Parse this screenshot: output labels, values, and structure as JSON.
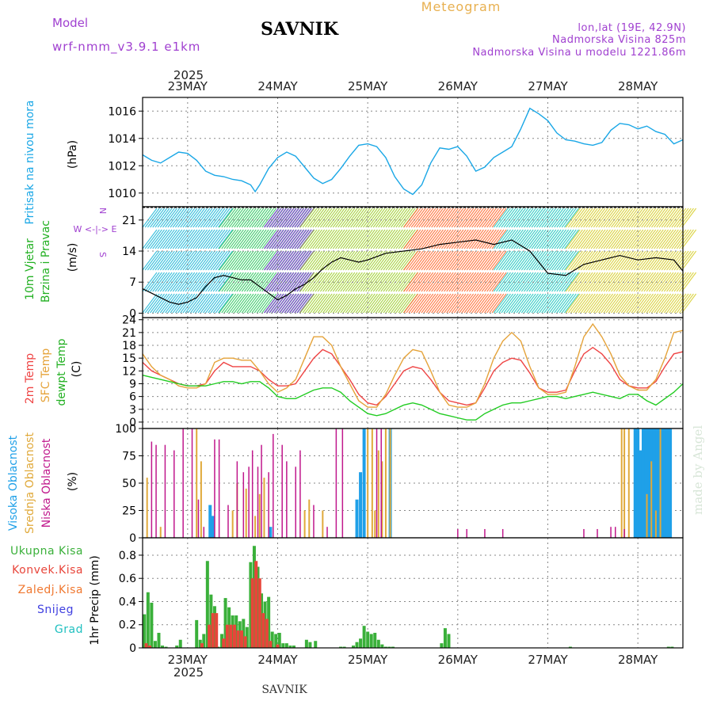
{
  "header": {
    "model_label": "Model",
    "model_name": "wrf-nmm_v3.9.1  e1km",
    "station": "SAVNIK",
    "product": "Meteogram",
    "coords": "lon,lat (19E, 42.9N)",
    "elevation": "Nadmorska Visina 825m",
    "model_elevation": "Nadmorska Visina u modelu 1221.86m",
    "watermark": "made by Angel",
    "footer_station": "SAVNIK"
  },
  "time_axis": {
    "year": "2025",
    "days": [
      "23MAY",
      "24MAY",
      "25MAY",
      "26MAY",
      "27MAY",
      "28MAY"
    ],
    "day_positions_days": [
      0,
      1,
      2,
      3,
      4,
      5
    ],
    "range_days": [
      -0.5,
      5.5
    ]
  },
  "colors": {
    "pressure": "#1aa7e6",
    "wind_black": "#000000",
    "t2m": "#ef4444",
    "tsfc": "#e5a33a",
    "dewpt": "#22cc22",
    "high_cloud": "#1fa0e8",
    "mid_cloud": "#e0a93a",
    "low_cloud": "#c0188c",
    "precip_total": "#3ab03a",
    "precip_conv": "#e8453a",
    "precip_strat": "#f07830",
    "snow": "#4040e0",
    "hail": "#20c0c0",
    "title_purple": "#a040d0",
    "meteogram_gold": "#e8b050"
  },
  "panels": {
    "pressure": {
      "label": "Pritisak na nivou mora",
      "unit": "(hPa)",
      "ticks": [
        1010,
        1012,
        1014,
        1016
      ]
    },
    "wind": {
      "label1": "10m Vjetar",
      "label2": "Brzina i Pravac",
      "unit": "(m/s)",
      "ticks": [
        0,
        7,
        14,
        21
      ],
      "compass": "W <-|-> E",
      "compass_n": "N",
      "compass_s": "S"
    },
    "temp": {
      "label1": "2m Temp",
      "label2": "SFC Temp",
      "label3": "dewpt Temp",
      "unit": "(C)",
      "ticks": [
        0,
        3,
        6,
        9,
        12,
        15,
        18,
        21,
        24
      ]
    },
    "cloud": {
      "label1": "Visoka Oblacnost",
      "label2": "Srednja Oblacnost",
      "label3": "Niska Oblacnost",
      "unit": "(%)",
      "ticks": [
        0,
        25,
        50,
        75,
        100
      ]
    },
    "precip": {
      "unit": "1hr Precip (mm)",
      "ticks": [
        0,
        0.2,
        0.4,
        0.6,
        0.8
      ],
      "legend": [
        "Ukupna Kisa",
        "Konvek.Kisa",
        "Zaledj.Kisa",
        "Snijeg",
        "Grad"
      ]
    }
  },
  "chart_data": [
    {
      "type": "line",
      "title": "Pritisak na nivou mora",
      "ylabel": "(hPa)",
      "ylim": [
        1009,
        1017
      ],
      "x": [
        -0.5,
        -0.4,
        -0.3,
        -0.2,
        -0.1,
        0.0,
        0.1,
        0.2,
        0.3,
        0.4,
        0.5,
        0.6,
        0.7,
        0.75,
        0.8,
        0.9,
        1.0,
        1.1,
        1.2,
        1.3,
        1.4,
        1.5,
        1.6,
        1.7,
        1.8,
        1.9,
        2.0,
        2.1,
        2.2,
        2.3,
        2.4,
        2.5,
        2.6,
        2.7,
        2.8,
        2.9,
        3.0,
        3.1,
        3.2,
        3.3,
        3.4,
        3.5,
        3.6,
        3.7,
        3.8,
        3.9,
        4.0,
        4.1,
        4.2,
        4.3,
        4.4,
        4.5,
        4.6,
        4.7,
        4.8,
        4.9,
        5.0,
        5.1,
        5.2,
        5.3,
        5.4,
        5.5
      ],
      "y": [
        1012.8,
        1012.4,
        1012.2,
        1012.6,
        1013.0,
        1012.9,
        1012.4,
        1011.6,
        1011.3,
        1011.2,
        1011.0,
        1010.9,
        1010.6,
        1010.1,
        1010.6,
        1011.8,
        1012.6,
        1013.0,
        1012.7,
        1011.9,
        1011.1,
        1010.7,
        1011.0,
        1011.8,
        1012.7,
        1013.5,
        1013.6,
        1013.4,
        1012.6,
        1011.2,
        1010.3,
        1009.9,
        1010.6,
        1012.2,
        1013.3,
        1013.2,
        1013.4,
        1012.7,
        1011.6,
        1011.9,
        1012.6,
        1013.0,
        1013.4,
        1014.7,
        1016.2,
        1015.8,
        1015.3,
        1014.4,
        1013.9,
        1013.8,
        1013.6,
        1013.5,
        1013.7,
        1014.6,
        1015.1,
        1015.0,
        1014.7,
        1014.9,
        1014.5,
        1014.3,
        1013.6,
        1013.9
      ]
    },
    {
      "type": "line",
      "title": "10m Vjetar Brzina i Pravac",
      "ylabel": "(m/s)",
      "ylim": [
        -1,
        24
      ],
      "series": [
        {
          "name": "10m wind speed",
          "x": [
            -0.5,
            -0.4,
            -0.3,
            -0.2,
            -0.1,
            0.0,
            0.1,
            0.2,
            0.3,
            0.4,
            0.5,
            0.6,
            0.7,
            0.8,
            0.9,
            1.0,
            1.1,
            1.2,
            1.3,
            1.4,
            1.5,
            1.6,
            1.7,
            1.8,
            1.9,
            2.0,
            2.2,
            2.4,
            2.6,
            2.8,
            3.0,
            3.2,
            3.4,
            3.6,
            3.8,
            4.0,
            4.2,
            4.4,
            4.6,
            4.8,
            5.0,
            5.2,
            5.4,
            5.5
          ],
          "y": [
            5.5,
            4.5,
            3.5,
            2.5,
            2.0,
            2.5,
            3.5,
            6.0,
            8.0,
            8.5,
            8.0,
            7.5,
            7.5,
            6.0,
            4.5,
            3.0,
            4.0,
            5.5,
            6.5,
            8.0,
            10.0,
            11.5,
            12.5,
            12.0,
            11.5,
            12.0,
            13.5,
            14.0,
            14.5,
            15.5,
            16.0,
            16.5,
            15.5,
            16.5,
            14.0,
            9.0,
            8.5,
            11.0,
            12.0,
            13.0,
            12.0,
            12.5,
            12.0,
            9.5
          ]
        }
      ]
    },
    {
      "type": "line",
      "title": "2m Temp / SFC Temp / dewpt Temp",
      "ylabel": "(C)",
      "ylim": [
        -1.5,
        24.5
      ],
      "x": [
        -0.5,
        -0.4,
        -0.3,
        -0.2,
        -0.1,
        0.0,
        0.1,
        0.2,
        0.3,
        0.4,
        0.5,
        0.6,
        0.7,
        0.8,
        0.9,
        1.0,
        1.1,
        1.2,
        1.3,
        1.4,
        1.5,
        1.6,
        1.7,
        1.8,
        1.9,
        2.0,
        2.1,
        2.2,
        2.3,
        2.4,
        2.5,
        2.6,
        2.7,
        2.8,
        2.9,
        3.0,
        3.1,
        3.2,
        3.3,
        3.4,
        3.5,
        3.6,
        3.7,
        3.8,
        3.9,
        4.0,
        4.1,
        4.2,
        4.3,
        4.4,
        4.5,
        4.6,
        4.7,
        4.8,
        4.9,
        5.0,
        5.1,
        5.2,
        5.3,
        5.4,
        5.5
      ],
      "series": [
        {
          "name": "2m Temp",
          "y": [
            14,
            12,
            11,
            10,
            9,
            8.5,
            8.5,
            9,
            12,
            14,
            13,
            13,
            13,
            12,
            10,
            8.5,
            8.5,
            9,
            12,
            15,
            17,
            16,
            13,
            10,
            6.5,
            4.5,
            4,
            6,
            9,
            12,
            13,
            12.5,
            10,
            7,
            5,
            4.5,
            4,
            4.5,
            8,
            12,
            14,
            15,
            14.5,
            11.5,
            8,
            7,
            7,
            7.5,
            12,
            16,
            17.5,
            16,
            13.5,
            10,
            8.5,
            8,
            8,
            9.5,
            13,
            16,
            16.5
          ]
        },
        {
          "name": "SFC Temp",
          "y": [
            16,
            13,
            11,
            10,
            8.5,
            8,
            8,
            9,
            14,
            15,
            15,
            14.5,
            14.5,
            12,
            9,
            7,
            8,
            10,
            15,
            20,
            20,
            18,
            13,
            9,
            5,
            3.5,
            3.5,
            6.5,
            11,
            15,
            17,
            16.5,
            12,
            7,
            4,
            3.5,
            3.5,
            4.5,
            9,
            15,
            19,
            21,
            19,
            13,
            8,
            6.5,
            6.5,
            7,
            13,
            20,
            23,
            20,
            16,
            11,
            8.5,
            7.5,
            7.5,
            10,
            15,
            21,
            21.5
          ]
        },
        {
          "name": "dewpt Temp",
          "y": [
            11,
            10.5,
            10,
            9.5,
            9,
            8.5,
            8.5,
            8.5,
            9,
            9.5,
            9.5,
            9,
            9.5,
            9.5,
            8,
            6,
            5.5,
            5.5,
            6.5,
            7.5,
            8,
            8,
            7,
            5,
            3.5,
            2,
            1.5,
            2,
            3,
            4,
            4.5,
            4,
            3,
            2,
            1.5,
            1,
            0.5,
            0.5,
            2,
            3,
            4,
            4.5,
            4.5,
            5,
            5.5,
            6,
            6,
            5.5,
            6,
            6.5,
            7,
            6.5,
            6,
            5.5,
            6.5,
            6.5,
            5,
            4,
            5.5,
            7,
            9
          ]
        }
      ]
    },
    {
      "type": "bar",
      "title": "Visoka / Srednja / Niska Oblacnost",
      "ylabel": "(%)",
      "ylim": [
        0,
        100
      ],
      "series": [
        {
          "name": "Visoka Oblacnost",
          "x": [
            0.25,
            0.28,
            0.92,
            1.88,
            1.92,
            1.96,
            2.25,
            4.97,
            5.0,
            5.03,
            5.06,
            5.09,
            5.12,
            5.15,
            5.18,
            5.21,
            5.24,
            5.27,
            5.3,
            5.33,
            5.36
          ],
          "y": [
            30,
            20,
            10,
            35,
            60,
            100,
            100,
            100,
            100,
            80,
            100,
            100,
            100,
            100,
            100,
            100,
            100,
            100,
            100,
            100,
            100
          ]
        },
        {
          "name": "Srednja Oblacnost",
          "x": [
            -0.45,
            -0.3,
            0.1,
            0.15,
            0.5,
            0.55,
            0.65,
            0.75,
            0.8,
            0.85,
            1.3,
            1.35,
            1.5,
            2.0,
            2.05,
            2.08,
            2.12,
            2.16,
            2.2,
            2.25,
            4.82,
            4.85,
            4.9,
            5.1,
            5.15,
            5.2,
            5.25
          ],
          "y": [
            55,
            10,
            100,
            70,
            25,
            50,
            45,
            20,
            40,
            55,
            25,
            35,
            25,
            100,
            100,
            25,
            80,
            70,
            100,
            100,
            100,
            100,
            100,
            40,
            70,
            25,
            100
          ]
        },
        {
          "name": "Niska Oblacnost",
          "x": [
            -0.4,
            -0.35,
            -0.25,
            -0.15,
            -0.05,
            0.05,
            0.12,
            0.18,
            0.3,
            0.35,
            0.45,
            0.55,
            0.62,
            0.68,
            0.72,
            0.78,
            0.82,
            0.9,
            0.95,
            1.05,
            1.1,
            1.2,
            1.25,
            1.4,
            1.55,
            1.65,
            1.72,
            2.1,
            2.15,
            3.0,
            3.1,
            3.3,
            3.5,
            4.4,
            4.55,
            4.7,
            4.75,
            4.85
          ],
          "y": [
            88,
            85,
            85,
            80,
            100,
            100,
            35,
            10,
            90,
            90,
            30,
            70,
            60,
            65,
            80,
            65,
            85,
            60,
            95,
            85,
            70,
            65,
            80,
            30,
            10,
            100,
            100,
            100,
            100,
            8,
            8,
            8,
            8,
            8,
            8,
            10,
            10,
            8
          ]
        }
      ]
    },
    {
      "type": "bar",
      "title": "1hr Precip",
      "ylabel": "1hr Precip (mm)",
      "ylim": [
        0,
        0.95
      ],
      "series": [
        {
          "name": "Ukupna Kisa",
          "x": [
            -0.48,
            -0.44,
            -0.4,
            -0.36,
            -0.32,
            -0.28,
            -0.24,
            -0.12,
            -0.08,
            0.1,
            0.14,
            0.18,
            0.22,
            0.26,
            0.3,
            0.34,
            0.38,
            0.42,
            0.46,
            0.5,
            0.54,
            0.58,
            0.62,
            0.66,
            0.7,
            0.74,
            0.78,
            0.82,
            0.86,
            0.9,
            0.94,
            0.98,
            1.02,
            1.06,
            1.1,
            1.14,
            1.18,
            1.32,
            1.36,
            1.42,
            1.7,
            1.74,
            1.84,
            1.88,
            1.92,
            1.96,
            2.0,
            2.04,
            2.08,
            2.12,
            2.16,
            2.2,
            2.24,
            2.28,
            2.82,
            2.86,
            2.9,
            4.25,
            5.34,
            5.38
          ],
          "y": [
            0.29,
            0.48,
            0.39,
            0.06,
            0.13,
            0.02,
            0.01,
            0.02,
            0.07,
            0.24,
            0.07,
            0.12,
            0.75,
            0.46,
            0.36,
            0.01,
            0.12,
            0.43,
            0.35,
            0.28,
            0.28,
            0.23,
            0.25,
            0.18,
            0.74,
            0.88,
            0.7,
            0.47,
            0.4,
            0.44,
            0.14,
            0.12,
            0.13,
            0.04,
            0.04,
            0.02,
            0.02,
            0.07,
            0.05,
            0.06,
            0.01,
            0.01,
            0.02,
            0.05,
            0.08,
            0.19,
            0.14,
            0.12,
            0.13,
            0.07,
            0.03,
            0.01,
            0.01,
            0.01,
            0.04,
            0.17,
            0.12,
            0.01,
            0.01,
            0.01
          ]
        },
        {
          "name": "Konvek.Kisa",
          "x": [
            -0.46,
            -0.42,
            0.16,
            0.24,
            0.28,
            0.32,
            0.4,
            0.44,
            0.48,
            0.52,
            0.56,
            0.6,
            0.64,
            0.72,
            0.76,
            0.8,
            0.84,
            0.88,
            0.92,
            1.0
          ],
          "y": [
            0.04,
            0.02,
            0.04,
            0.2,
            0.3,
            0.3,
            0.08,
            0.2,
            0.2,
            0.2,
            0.15,
            0.15,
            0.1,
            0.6,
            0.75,
            0.6,
            0.3,
            0.25,
            0.06,
            0.03
          ]
        }
      ]
    }
  ]
}
